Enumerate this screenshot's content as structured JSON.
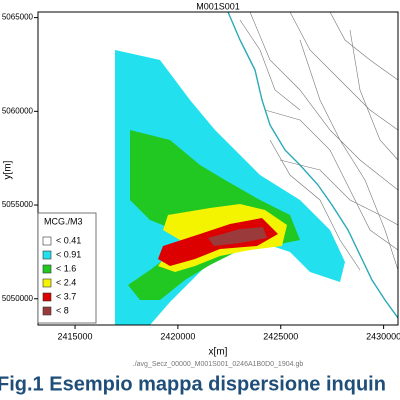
{
  "chart_data": {
    "type": "map",
    "title": "M001S001",
    "x_label": "x[m]",
    "y_label": "y[m]",
    "xlim": [
      2413200,
      2430700
    ],
    "ylim": [
      5048600,
      5065300
    ],
    "xticks": [
      2415000,
      2420000,
      2425000,
      2430000
    ],
    "yticks": [
      5050000,
      5055000,
      5060000,
      5065000
    ],
    "legend": {
      "title": "MCG./M3",
      "items": [
        {
          "label": "< 0.41",
          "color": "#ffffff"
        },
        {
          "label": "< 0.91",
          "color": "#22e0ee"
        },
        {
          "label": "< 1.6",
          "color": "#22c822"
        },
        {
          "label": "< 2.4",
          "color": "#f4f400"
        },
        {
          "label": "< 3.7",
          "color": "#dd0000"
        },
        {
          "label": "< 8",
          "color": "#9a3a3a"
        }
      ]
    },
    "file_name": "./avg_Secz_00000_M001S001_0246A1B0D0_1904.gb",
    "caption": "Fig.1 Esempio mappa dispersione inquin"
  }
}
